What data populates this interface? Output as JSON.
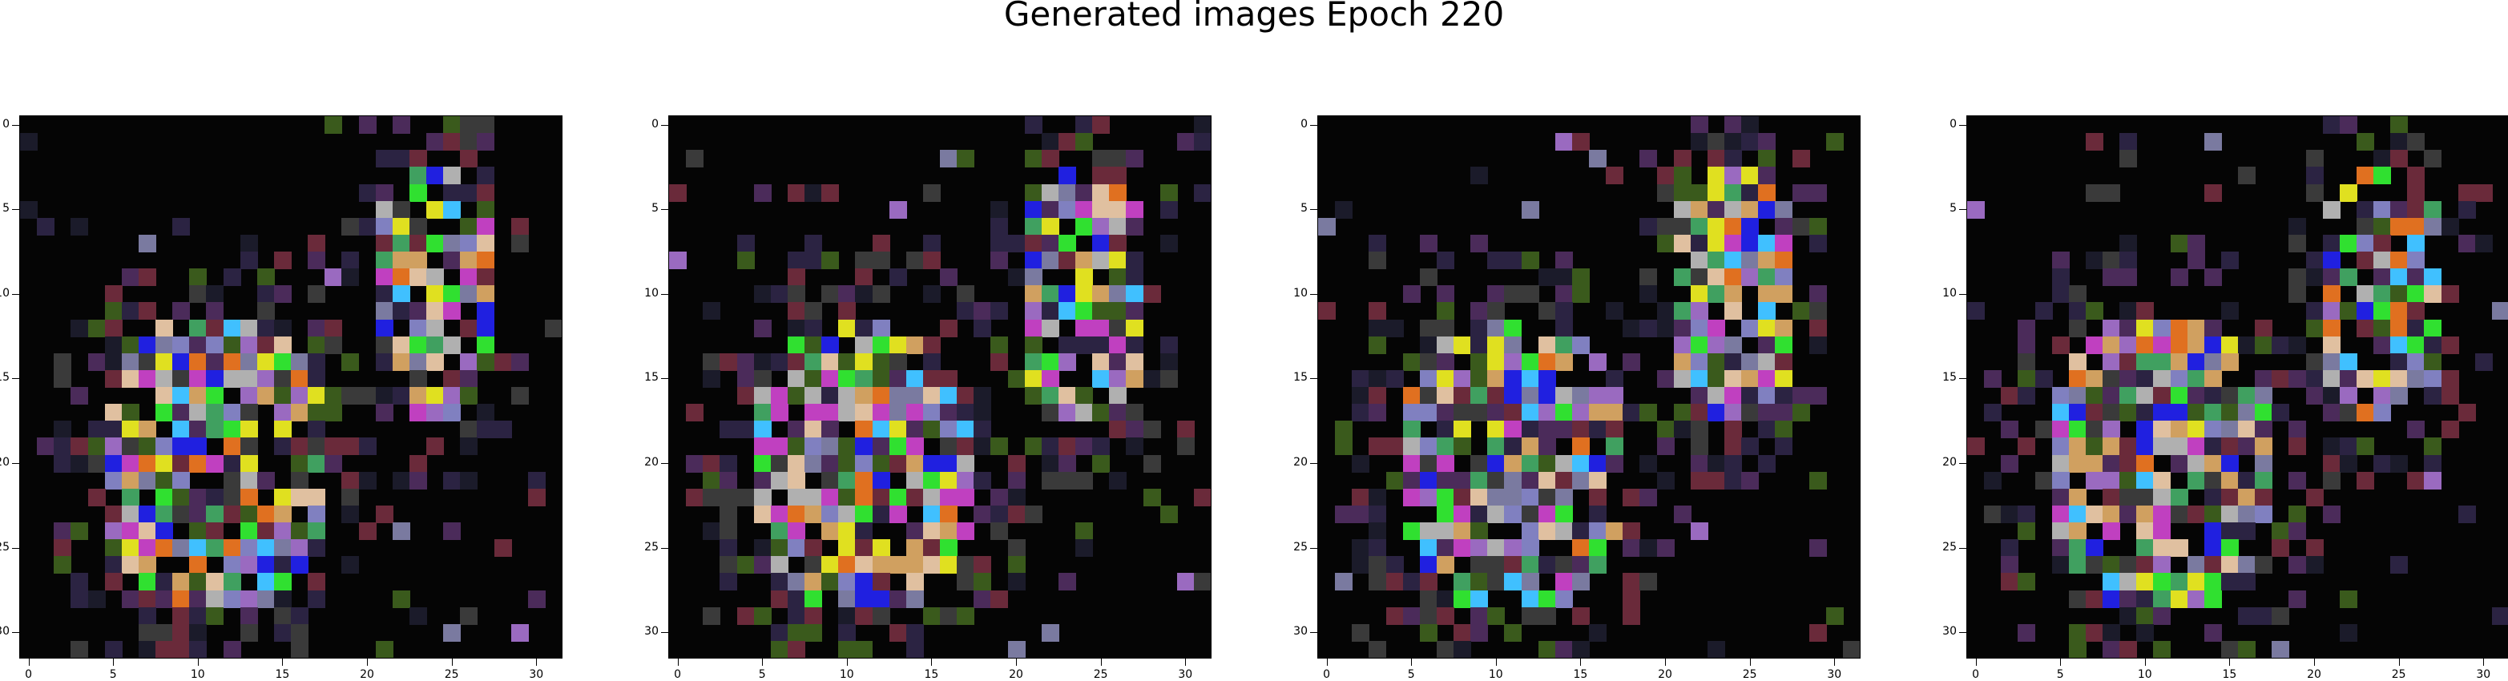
{
  "title": "Generated images Epoch 220",
  "panels": [
    {
      "id": "panel-1",
      "label": ""
    },
    {
      "id": "panel-2",
      "label": ""
    },
    {
      "id": "panel-3",
      "label": ""
    },
    {
      "id": "panel-4",
      "label": ""
    }
  ],
  "axis": {
    "x_ticks": [
      "0",
      "5",
      "10",
      "15",
      "20",
      "25",
      "30"
    ],
    "y_ticks": [
      "0",
      "5",
      "10",
      "15",
      "20",
      "25",
      "30"
    ]
  },
  "image": {
    "grid_size": 32,
    "background": "#050505",
    "palette": [
      "#0a0a0a",
      "#1b1b2a",
      "#2b2342",
      "#3a3a3a",
      "#4b2b5a",
      "#3a5a1c",
      "#6a2a3a",
      "#7a7aa0",
      "#9a6ac0",
      "#b0b0b0",
      "#e0c0a0",
      "#c040c0",
      "#40c0ff",
      "#30e030",
      "#e0e020",
      "#e07020",
      "#2020e0",
      "#40a060",
      "#8080c0",
      "#d0a060"
    ]
  }
}
